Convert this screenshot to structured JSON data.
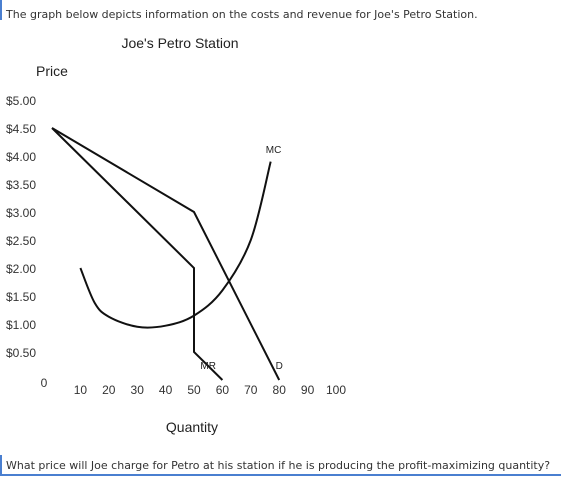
{
  "question_prompt": "The graph below depicts information on the costs and revenue for Joe's Petro Station.",
  "question_text": "What price will Joe charge for Petro at his station if he is producing the profit-maximizing quantity?",
  "chart_data": {
    "type": "line",
    "title": "Joe's Petro Station",
    "xlabel": "Quantity",
    "ylabel": "Price",
    "xlim": [
      0,
      100
    ],
    "ylim": [
      0,
      5.0
    ],
    "x_ticks": [
      0,
      10,
      20,
      30,
      40,
      50,
      60,
      70,
      80,
      90,
      100
    ],
    "x_tick_labels": [
      "0",
      "10",
      "20",
      "30",
      "40",
      "50",
      "60",
      "70",
      "80",
      "90",
      "100"
    ],
    "y_ticks": [
      0.5,
      1.0,
      1.5,
      2.0,
      2.5,
      3.0,
      3.5,
      4.0,
      4.5,
      5.0
    ],
    "y_tick_labels": [
      "$0.50",
      "$1.00",
      "$1.50",
      "$2.00",
      "$2.50",
      "$3.00",
      "$3.50",
      "$4.00",
      "$4.50",
      "$5.00"
    ],
    "grid": false,
    "line_color": "#111111",
    "series": [
      {
        "name": "D",
        "x": [
          0,
          50,
          80
        ],
        "y": [
          4.5,
          3.0,
          0.0
        ]
      },
      {
        "name": "MR",
        "x": [
          0,
          50,
          50,
          60
        ],
        "y": [
          4.5,
          2.0,
          0.5,
          0.0
        ]
      },
      {
        "name": "MC",
        "x": [
          10,
          15,
          20,
          30,
          40,
          50,
          60,
          70,
          77
        ],
        "y": [
          2.0,
          1.38,
          1.13,
          0.95,
          0.97,
          1.15,
          1.6,
          2.5,
          3.9
        ]
      }
    ],
    "labels": {
      "D": "D",
      "MR": "MR",
      "MC": "MC"
    }
  }
}
